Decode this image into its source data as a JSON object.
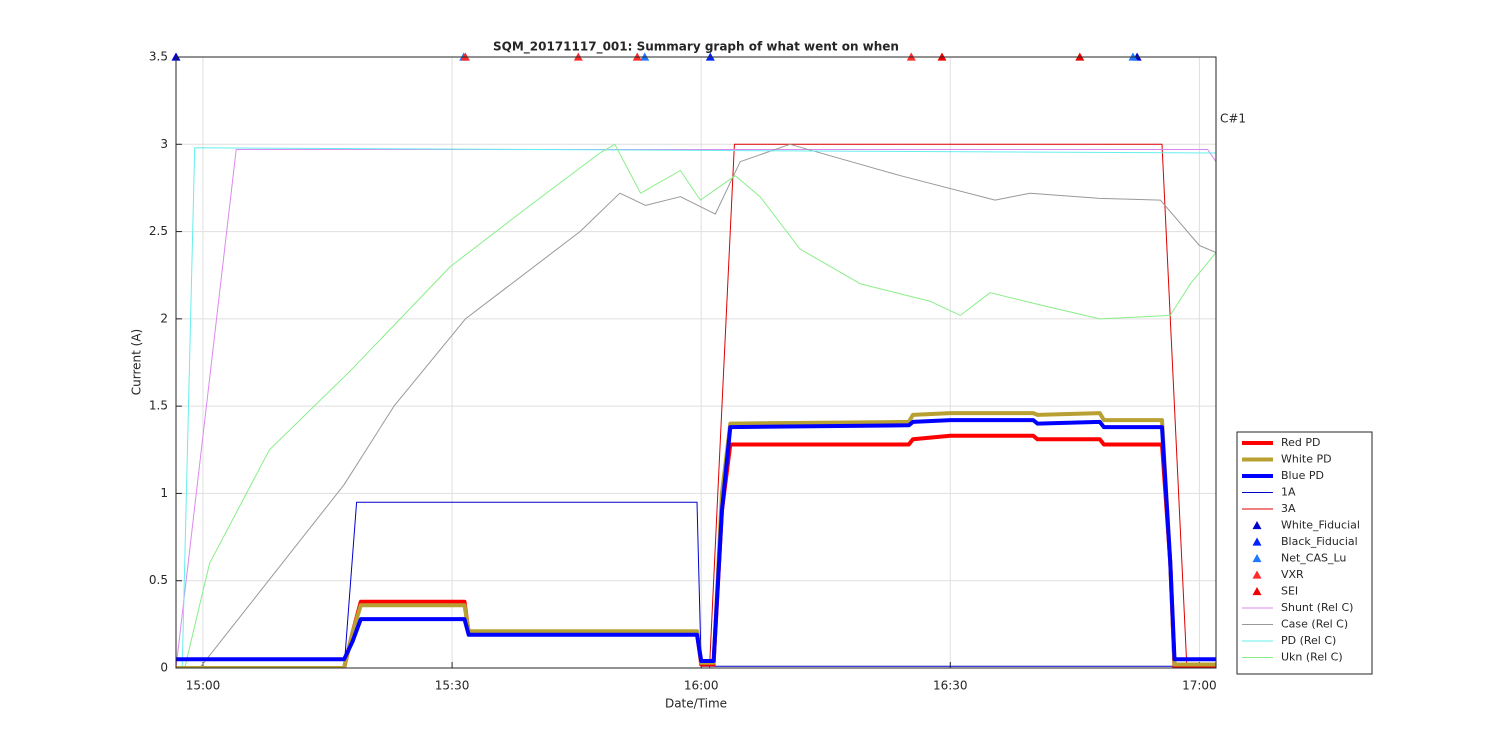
{
  "chart_data": {
    "type": "line",
    "title": "SQM_20171117_001: Summary graph of what went on when",
    "xlabel": "Date/Time",
    "ylabel": "Current (A)",
    "annotation": "C#1",
    "xlim": [
      896.75,
      1022
    ],
    "ylim": [
      0,
      3.5
    ],
    "xticks": [
      {
        "value": 900,
        "label": "15:00"
      },
      {
        "value": 930,
        "label": "15:30"
      },
      {
        "value": 960,
        "label": "16:00"
      },
      {
        "value": 990,
        "label": "16:30"
      },
      {
        "value": 1020,
        "label": "17:00"
      }
    ],
    "yticks": [
      0,
      0.5,
      1,
      1.5,
      2,
      2.5,
      3,
      3.5
    ],
    "grid": true,
    "legend": "lower right",
    "series": [
      {
        "name": "Red PD",
        "color": "#ff0000",
        "line_width": 4,
        "x": [
          896.75,
          917,
          918,
          919,
          931.5,
          932,
          959.5,
          960,
          961.5,
          962.5,
          963.5,
          985,
          985.5,
          990,
          1000,
          1000.5,
          1008,
          1008.5,
          1015.5,
          1016.5,
          1017,
          1022
        ],
        "values": [
          0,
          0,
          0.2,
          0.38,
          0.38,
          0.2,
          0.2,
          0.02,
          0.02,
          0.9,
          1.28,
          1.28,
          1.31,
          1.33,
          1.33,
          1.31,
          1.31,
          1.28,
          1.28,
          0.6,
          0,
          0
        ]
      },
      {
        "name": "White PD",
        "color": "#b8a032",
        "line_width": 4,
        "x": [
          896.75,
          917,
          918,
          919,
          931.5,
          932,
          959.5,
          960,
          961.5,
          962.5,
          963.5,
          985,
          985.5,
          990,
          1000,
          1000.5,
          1008,
          1008.5,
          1015.5,
          1016.5,
          1017,
          1022
        ],
        "values": [
          0,
          0,
          0.2,
          0.36,
          0.36,
          0.21,
          0.21,
          0.03,
          0.03,
          1.0,
          1.4,
          1.41,
          1.45,
          1.46,
          1.46,
          1.45,
          1.46,
          1.42,
          1.42,
          0.6,
          0.02,
          0.02
        ]
      },
      {
        "name": "Blue PD",
        "color": "#0000ff",
        "line_width": 4,
        "x": [
          896.75,
          917,
          918,
          919,
          931.5,
          932,
          959.5,
          960,
          961.5,
          962.5,
          963.5,
          985,
          985.5,
          990,
          1000,
          1000.5,
          1008,
          1008.5,
          1015.5,
          1016.5,
          1017,
          1022
        ],
        "values": [
          0.05,
          0.05,
          0.15,
          0.28,
          0.28,
          0.19,
          0.19,
          0.04,
          0.04,
          0.9,
          1.38,
          1.39,
          1.41,
          1.42,
          1.42,
          1.4,
          1.41,
          1.38,
          1.38,
          0.6,
          0.05,
          0.05
        ]
      },
      {
        "name": "1A",
        "color": "#0000cc",
        "line_width": 1,
        "x": [
          896.75,
          917,
          918.5,
          959.5,
          960,
          1022
        ],
        "values": [
          0,
          0,
          0.95,
          0.95,
          0.01,
          0.01
        ]
      },
      {
        "name": "3A",
        "color": "#dd0000",
        "line_width": 1,
        "x": [
          896.75,
          961,
          964,
          1015.5,
          1018.5,
          1022
        ],
        "values": [
          0,
          0,
          3,
          3,
          0,
          0
        ]
      },
      {
        "name": "White_Fiducial",
        "color": "#0000cc",
        "marker": "^",
        "x": [
          896.75,
          1012.5
        ],
        "values": [
          3.5,
          3.5
        ]
      },
      {
        "name": "Black_Fiducial",
        "color": "#0022ff",
        "marker": "^",
        "x": [
          961.1
        ],
        "values": [
          3.5
        ]
      },
      {
        "name": "Net_CAS_Lu",
        "color": "#1e78ff",
        "marker": "^",
        "x": [
          931.4,
          953.2,
          1012
        ],
        "values": [
          3.5,
          3.5,
          3.5
        ]
      },
      {
        "name": "VXR",
        "color": "#ff2a2a",
        "marker": "^",
        "x": [
          931.6,
          945.2,
          952.3,
          985.3
        ],
        "values": [
          3.5,
          3.5,
          3.5,
          3.5
        ]
      },
      {
        "name": "SEI",
        "color": "#ee0000",
        "marker": "^",
        "x": [
          989,
          1005.6
        ],
        "values": [
          3.5,
          3.5
        ]
      },
      {
        "name": "Shunt (Rel C)",
        "color": "#dd88ee",
        "line_width": 1,
        "x": [
          896.75,
          904,
          1021,
          1022
        ],
        "values": [
          0,
          2.97,
          2.97,
          2.9
        ]
      },
      {
        "name": "Case (Rel C)",
        "color": "#999999",
        "line_width": 1,
        "x": [
          896.75,
          899.6,
          917,
          923,
          931.6,
          945.4,
          950.2,
          953.3,
          957.5,
          961.7,
          964.7,
          970.7,
          984,
          995.4,
          999.6,
          1008,
          1015.3,
          1020,
          1022
        ],
        "values": [
          0,
          0,
          1.05,
          1.5,
          2.0,
          2.5,
          2.72,
          2.65,
          2.7,
          2.6,
          2.9,
          3.0,
          2.82,
          2.68,
          2.72,
          2.69,
          2.68,
          2.42,
          2.38
        ]
      },
      {
        "name": "PD (Rel C)",
        "color": "#66eeee",
        "line_width": 1,
        "x": [
          896.75,
          897.5,
          899,
          1022
        ],
        "values": [
          0,
          0,
          2.98,
          2.95
        ]
      },
      {
        "name": "Ukn (Rel C)",
        "color": "#88ee88",
        "line_width": 1,
        "x": [
          896.75,
          897.8,
          900.8,
          908,
          917.7,
          929.8,
          939.4,
          947.8,
          949.6,
          952.7,
          957.5,
          959.9,
          964.1,
          967.1,
          971.9,
          979.2,
          987.6,
          991.2,
          994.8,
          1000.8,
          1008,
          1016.5,
          1018.9,
          1022
        ],
        "values": [
          0,
          0,
          0.6,
          1.25,
          1.7,
          2.3,
          2.65,
          2.95,
          3.0,
          2.72,
          2.85,
          2.68,
          2.82,
          2.7,
          2.4,
          2.2,
          2.1,
          2.02,
          2.15,
          2.08,
          2.0,
          2.02,
          2.2,
          2.38
        ]
      }
    ]
  }
}
